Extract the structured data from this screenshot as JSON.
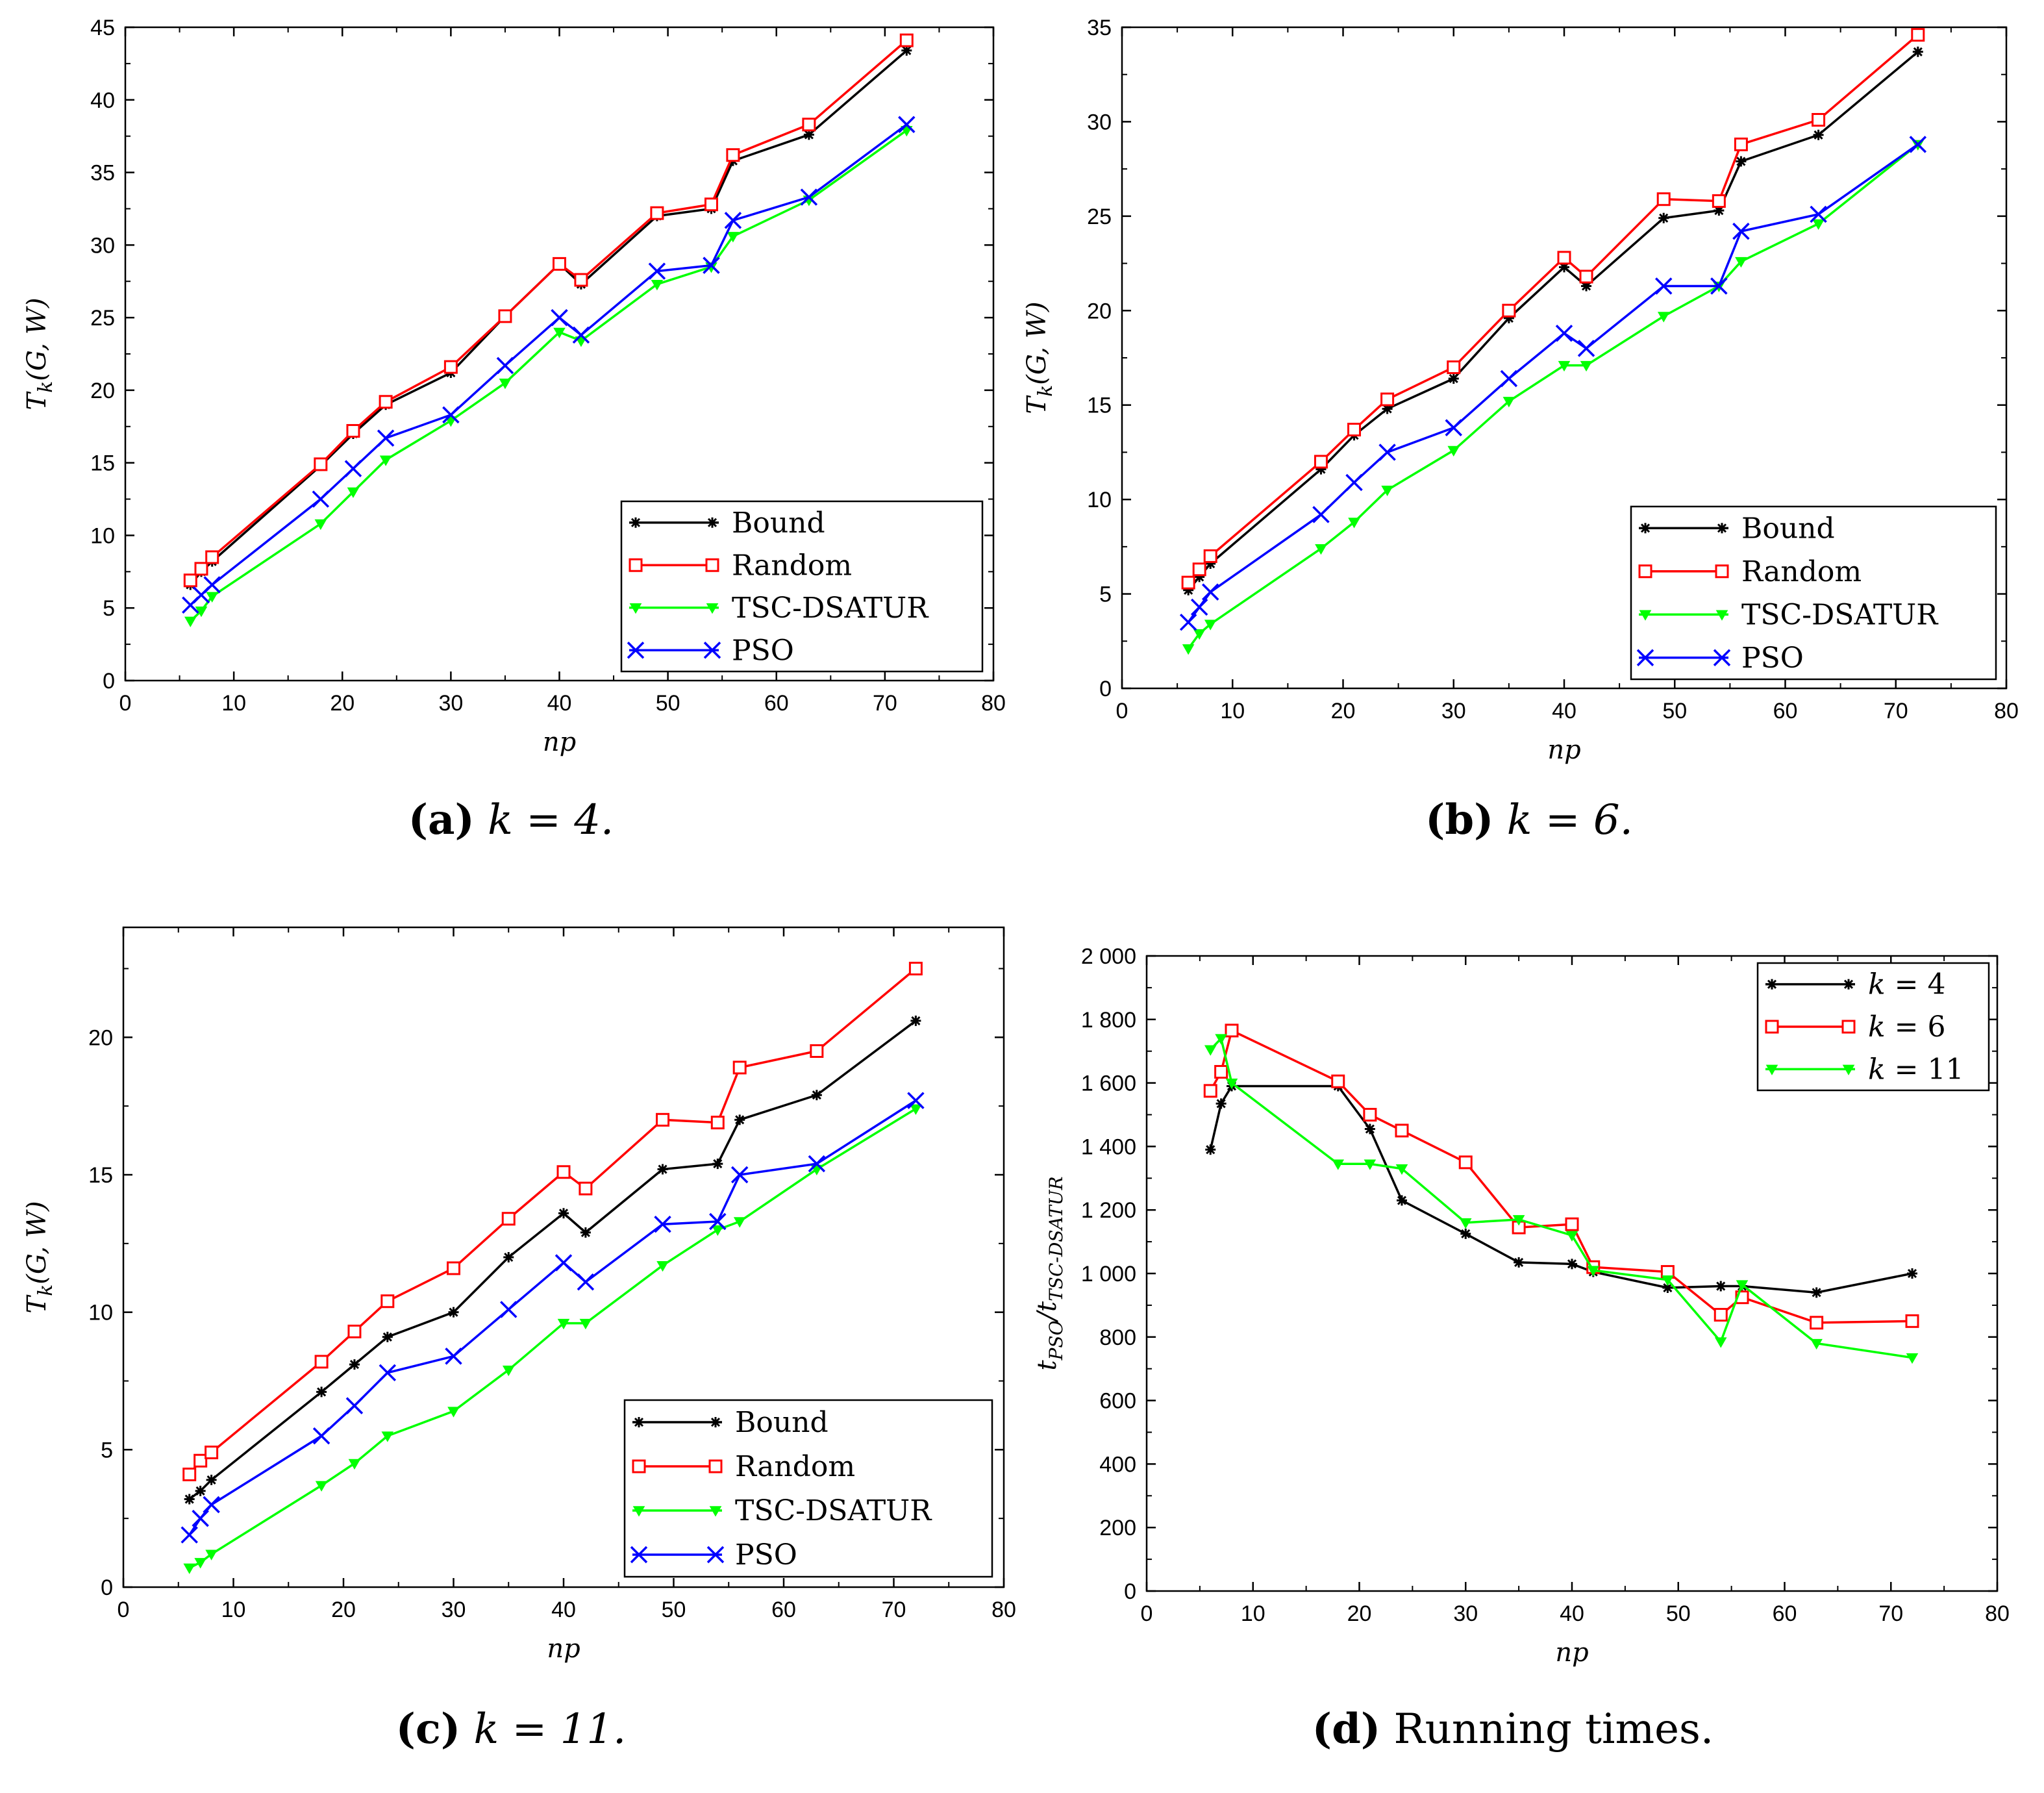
{
  "chart_data": [
    {
      "id": "a",
      "type": "line",
      "caption_label": "(a)",
      "caption_expr": "k = 4.",
      "xlabel": "np",
      "ylabel": "T_k(G, W)",
      "xlim": [
        0,
        80
      ],
      "ylim": [
        0,
        45
      ],
      "xticks": [
        0,
        10,
        20,
        30,
        40,
        50,
        60,
        70,
        80
      ],
      "yticks": [
        0,
        5,
        10,
        15,
        20,
        25,
        30,
        35,
        40,
        45
      ],
      "x": [
        6,
        7,
        8,
        18,
        21,
        24,
        30,
        35,
        40,
        42,
        49,
        54,
        56,
        63,
        72
      ],
      "series": [
        {
          "name": "Bound",
          "color": "#000000",
          "marker": "star",
          "values": [
            6.6,
            7.5,
            8.2,
            14.8,
            17.0,
            19.0,
            21.2,
            25.1,
            28.7,
            27.3,
            32.0,
            32.5,
            35.8,
            37.6,
            43.4
          ]
        },
        {
          "name": "Random",
          "color": "#ff0000",
          "marker": "square",
          "values": [
            6.9,
            7.7,
            8.5,
            14.9,
            17.2,
            19.2,
            21.6,
            25.1,
            28.7,
            27.6,
            32.2,
            32.8,
            36.2,
            38.3,
            44.1
          ]
        },
        {
          "name": "TSC-DSATUR",
          "color": "#00ff00",
          "marker": "triangle",
          "values": [
            4.1,
            4.8,
            5.8,
            10.8,
            13.0,
            15.2,
            17.9,
            20.5,
            24.0,
            23.4,
            27.3,
            28.5,
            30.6,
            33.1,
            37.9
          ]
        },
        {
          "name": "PSO",
          "color": "#0000ff",
          "marker": "x",
          "values": [
            5.2,
            5.9,
            6.6,
            12.5,
            14.6,
            16.7,
            18.3,
            21.7,
            25.0,
            23.8,
            28.2,
            28.6,
            31.7,
            33.3,
            38.3
          ]
        }
      ],
      "legend_position": "bottom-right"
    },
    {
      "id": "b",
      "type": "line",
      "caption_label": "(b)",
      "caption_expr": "k = 6.",
      "xlabel": "np",
      "ylabel": "T_k(G, W)",
      "xlim": [
        0,
        80
      ],
      "ylim": [
        0,
        35
      ],
      "xticks": [
        0,
        10,
        20,
        30,
        40,
        50,
        60,
        70,
        80
      ],
      "yticks": [
        0,
        5,
        10,
        15,
        20,
        25,
        30,
        35
      ],
      "x": [
        6,
        7,
        8,
        18,
        21,
        24,
        30,
        35,
        40,
        42,
        49,
        54,
        56,
        63,
        72
      ],
      "series": [
        {
          "name": "Bound",
          "color": "#000000",
          "marker": "star",
          "values": [
            5.2,
            5.9,
            6.6,
            11.6,
            13.4,
            14.8,
            16.4,
            19.6,
            22.3,
            21.3,
            24.9,
            25.3,
            27.9,
            29.3,
            33.7
          ]
        },
        {
          "name": "Random",
          "color": "#ff0000",
          "marker": "square",
          "values": [
            5.6,
            6.3,
            7.0,
            12.0,
            13.7,
            15.3,
            17.0,
            20.0,
            22.8,
            21.8,
            25.9,
            25.8,
            28.8,
            30.1,
            34.6
          ]
        },
        {
          "name": "TSC-DSATUR",
          "color": "#00ff00",
          "marker": "triangle",
          "values": [
            2.1,
            2.9,
            3.4,
            7.4,
            8.8,
            10.5,
            12.6,
            15.2,
            17.1,
            17.1,
            19.7,
            21.3,
            22.6,
            24.6,
            28.8
          ]
        },
        {
          "name": "PSO",
          "color": "#0000ff",
          "marker": "x",
          "values": [
            3.5,
            4.3,
            5.1,
            9.2,
            10.9,
            12.5,
            13.8,
            16.4,
            18.8,
            18.0,
            21.3,
            21.3,
            24.2,
            25.1,
            28.8
          ]
        }
      ],
      "legend_position": "bottom-right"
    },
    {
      "id": "c",
      "type": "line",
      "caption_label": "(c)",
      "caption_expr": "k = 11.",
      "xlabel": "np",
      "ylabel": "T_k(G, W)",
      "xlim": [
        0,
        80
      ],
      "ylim": [
        0,
        24
      ],
      "xticks": [
        0,
        10,
        20,
        30,
        40,
        50,
        60,
        70,
        80
      ],
      "yticks": [
        0,
        5,
        10,
        15,
        20
      ],
      "x": [
        6,
        7,
        8,
        18,
        21,
        24,
        30,
        35,
        40,
        42,
        49,
        54,
        56,
        63,
        72
      ],
      "series": [
        {
          "name": "Bound",
          "color": "#000000",
          "marker": "star",
          "values": [
            3.2,
            3.5,
            3.9,
            7.1,
            8.1,
            9.1,
            10.0,
            12.0,
            13.6,
            12.9,
            15.2,
            15.4,
            17.0,
            17.9,
            20.6
          ]
        },
        {
          "name": "Random",
          "color": "#ff0000",
          "marker": "square",
          "values": [
            4.1,
            4.6,
            4.9,
            8.2,
            9.3,
            10.4,
            11.6,
            13.4,
            15.1,
            14.5,
            17.0,
            16.9,
            18.9,
            19.5,
            22.5
          ]
        },
        {
          "name": "TSC-DSATUR",
          "color": "#00ff00",
          "marker": "triangle",
          "values": [
            0.7,
            0.9,
            1.2,
            3.7,
            4.5,
            5.5,
            6.4,
            7.9,
            9.6,
            9.6,
            11.7,
            13.0,
            13.3,
            15.2,
            17.4
          ]
        },
        {
          "name": "PSO",
          "color": "#0000ff",
          "marker": "x",
          "values": [
            1.9,
            2.5,
            3.0,
            5.5,
            6.6,
            7.8,
            8.4,
            10.1,
            11.8,
            11.1,
            13.2,
            13.3,
            15.0,
            15.4,
            17.7
          ]
        }
      ],
      "legend_position": "bottom-right"
    },
    {
      "id": "d",
      "type": "line",
      "caption_label": "(d)",
      "caption_expr": "Running times.",
      "xlabel": "np",
      "ylabel": "t_PSO / t_TSC-DSATUR",
      "xlim": [
        0,
        80
      ],
      "ylim": [
        0,
        2000
      ],
      "xticks": [
        0,
        10,
        20,
        30,
        40,
        50,
        60,
        70,
        80
      ],
      "yticks": [
        0,
        200,
        400,
        600,
        800,
        1000,
        1200,
        1400,
        1600,
        1800,
        2000
      ],
      "ytick_labels": [
        "0",
        "200",
        "400",
        "600",
        "800",
        "1 000",
        "1 200",
        "1 400",
        "1 600",
        "1 800",
        "2 000"
      ],
      "x": [
        6,
        7,
        8,
        18,
        21,
        24,
        30,
        35,
        40,
        42,
        49,
        54,
        56,
        63,
        72
      ],
      "series": [
        {
          "name": "k = 4",
          "color": "#000000",
          "marker": "star",
          "values": [
            1390,
            1535,
            1590,
            1590,
            1455,
            1230,
            1125,
            1035,
            1030,
            1005,
            955,
            960,
            960,
            940,
            1000
          ]
        },
        {
          "name": "k = 6",
          "color": "#ff0000",
          "marker": "square",
          "values": [
            1575,
            1635,
            1765,
            1605,
            1500,
            1450,
            1350,
            1145,
            1155,
            1020,
            1005,
            870,
            925,
            845,
            850
          ]
        },
        {
          "name": "k = 11",
          "color": "#00ff00",
          "marker": "triangle",
          "values": [
            1705,
            1740,
            1600,
            1345,
            1345,
            1330,
            1160,
            1170,
            1120,
            1010,
            980,
            785,
            965,
            780,
            735
          ]
        }
      ],
      "legend_position": "top-right"
    }
  ]
}
